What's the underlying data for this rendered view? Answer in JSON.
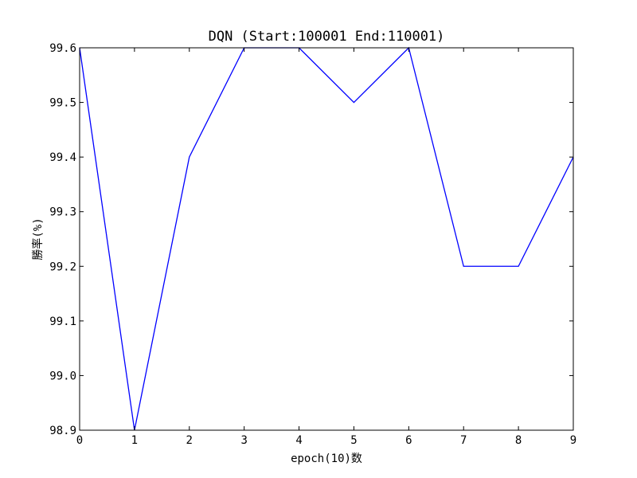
{
  "chart_data": {
    "type": "line",
    "title": "DQN (Start:100001  End:110001)",
    "xlabel": "epoch(10)数",
    "ylabel": "勝率(%)",
    "xlim": [
      0,
      9
    ],
    "ylim": [
      98.9,
      99.6
    ],
    "x_ticks": [
      0,
      1,
      2,
      3,
      4,
      5,
      6,
      7,
      8,
      9
    ],
    "x_tick_labels": [
      "0",
      "1",
      "2",
      "3",
      "4",
      "5",
      "6",
      "7",
      "8",
      "9"
    ],
    "y_ticks": [
      98.9,
      99.0,
      99.1,
      99.2,
      99.3,
      99.4,
      99.5,
      99.6
    ],
    "y_tick_labels": [
      "98.9",
      "99.0",
      "99.1",
      "99.2",
      "99.3",
      "99.4",
      "99.5",
      "99.6"
    ],
    "grid": false,
    "series": [
      {
        "color": "#0000ff",
        "x": [
          0,
          1,
          2,
          3,
          4,
          5,
          6,
          7,
          8,
          9
        ],
        "values": [
          99.6,
          98.9,
          99.4,
          99.6,
          99.6,
          99.5,
          99.6,
          99.2,
          99.2,
          99.4
        ]
      }
    ]
  }
}
